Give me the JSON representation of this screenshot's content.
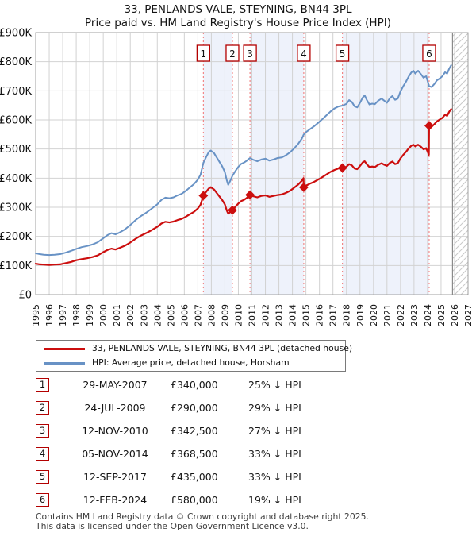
{
  "title": "33, PENLANDS VALE, STEYNING, BN44 3PL",
  "subtitle": "Price paid vs. HM Land Registry's House Price Index (HPI)",
  "legend": [
    {
      "label": "33, PENLANDS VALE, STEYNING, BN44 3PL (detached house)",
      "color": "#cc0e0e"
    },
    {
      "label": "HPI: Average price, detached house, Horsham",
      "color": "#6892c5"
    }
  ],
  "sales": [
    {
      "num": "1",
      "date": "29-MAY-2007",
      "price": "£340,000",
      "hpi_diff": "25% ↓ HPI",
      "year": 2007.41,
      "price_k": 340
    },
    {
      "num": "2",
      "date": "24-JUL-2009",
      "price": "£290,000",
      "hpi_diff": "29% ↓ HPI",
      "year": 2009.56,
      "price_k": 290
    },
    {
      "num": "3",
      "date": "12-NOV-2010",
      "price": "£342,500",
      "hpi_diff": "27% ↓ HPI",
      "year": 2010.86,
      "price_k": 342.5
    },
    {
      "num": "4",
      "date": "05-NOV-2014",
      "price": "£368,500",
      "hpi_diff": "33% ↓ HPI",
      "year": 2014.84,
      "price_k": 368.5
    },
    {
      "num": "5",
      "date": "12-SEP-2017",
      "price": "£435,000",
      "hpi_diff": "33% ↓ HPI",
      "year": 2017.7,
      "price_k": 435
    },
    {
      "num": "6",
      "date": "12-FEB-2024",
      "price": "£580,000",
      "hpi_diff": "19% ↓ HPI",
      "year": 2024.12,
      "price_k": 580
    }
  ],
  "footer": {
    "line1": "Contains HM Land Registry data © Crown copyright and database right 2025.",
    "line2": "This data is licensed under the Open Government Licence v3.0."
  },
  "chart_data": {
    "type": "line",
    "title": "Price paid vs. HPI",
    "x_min": 1995,
    "x_max": 2027,
    "y_max_k": 900,
    "y_tick_step_k": 100,
    "y_tick_labels": [
      "£0",
      "£100K",
      "£200K",
      "£300K",
      "£400K",
      "£500K",
      "£600K",
      "£700K",
      "£800K",
      "£900K"
    ],
    "data_end_year": 2025.85,
    "grid": true,
    "legend_position": "bottom",
    "bands_between_sales": [
      [
        2007.41,
        2009.56
      ],
      [
        2010.86,
        2014.84
      ],
      [
        2017.7,
        2024.12
      ]
    ],
    "colors": {
      "price_line": "#cc0e0e",
      "hpi_line": "#6892c5",
      "sale_dash": "#f27d7d",
      "band_fill": "#eef2fb",
      "grid_line": "#d2d2d2",
      "plot_border": "#a0a0a0",
      "hatch_line": "#c9c9c9",
      "data_end_line": "#8a8a8a",
      "badge_border": "#b30000"
    },
    "series": [
      {
        "name": "HPI: Average price, detached house, Horsham",
        "color": "#6892c5",
        "width": 2,
        "points": [
          [
            1995.0,
            142
          ],
          [
            1995.3,
            139
          ],
          [
            1995.6,
            137
          ],
          [
            1996.0,
            136
          ],
          [
            1996.4,
            137
          ],
          [
            1996.8,
            139
          ],
          [
            1997.2,
            144
          ],
          [
            1997.6,
            150
          ],
          [
            1998.0,
            157
          ],
          [
            1998.4,
            163
          ],
          [
            1998.8,
            167
          ],
          [
            1999.2,
            172
          ],
          [
            1999.6,
            180
          ],
          [
            2000.0,
            194
          ],
          [
            2000.3,
            204
          ],
          [
            2000.6,
            211
          ],
          [
            2000.9,
            207
          ],
          [
            2001.2,
            213
          ],
          [
            2001.6,
            224
          ],
          [
            2002.0,
            239
          ],
          [
            2002.4,
            256
          ],
          [
            2002.8,
            270
          ],
          [
            2003.2,
            282
          ],
          [
            2003.6,
            296
          ],
          [
            2004.0,
            310
          ],
          [
            2004.3,
            325
          ],
          [
            2004.6,
            333
          ],
          [
            2004.9,
            331
          ],
          [
            2005.2,
            334
          ],
          [
            2005.5,
            341
          ],
          [
            2005.8,
            346
          ],
          [
            2006.1,
            356
          ],
          [
            2006.4,
            368
          ],
          [
            2006.7,
            379
          ],
          [
            2007.0,
            395
          ],
          [
            2007.2,
            412
          ],
          [
            2007.41,
            453
          ],
          [
            2007.6,
            471
          ],
          [
            2007.8,
            489
          ],
          [
            2007.95,
            495
          ],
          [
            2008.2,
            486
          ],
          [
            2008.4,
            471
          ],
          [
            2008.6,
            456
          ],
          [
            2008.8,
            441
          ],
          [
            2009.0,
            421
          ],
          [
            2009.15,
            391
          ],
          [
            2009.25,
            377
          ],
          [
            2009.4,
            391
          ],
          [
            2009.56,
            408
          ],
          [
            2009.8,
            426
          ],
          [
            2010.0,
            439
          ],
          [
            2010.2,
            449
          ],
          [
            2010.4,
            453
          ],
          [
            2010.6,
            459
          ],
          [
            2010.86,
            469
          ],
          [
            2011.1,
            463
          ],
          [
            2011.4,
            458
          ],
          [
            2011.7,
            464
          ],
          [
            2012.0,
            467
          ],
          [
            2012.3,
            460
          ],
          [
            2012.6,
            464
          ],
          [
            2012.9,
            469
          ],
          [
            2013.2,
            471
          ],
          [
            2013.5,
            478
          ],
          [
            2013.8,
            488
          ],
          [
            2014.1,
            501
          ],
          [
            2014.4,
            516
          ],
          [
            2014.7,
            536
          ],
          [
            2014.84,
            550
          ],
          [
            2015.0,
            558
          ],
          [
            2015.3,
            568
          ],
          [
            2015.6,
            578
          ],
          [
            2015.9,
            590
          ],
          [
            2016.2,
            602
          ],
          [
            2016.5,
            615
          ],
          [
            2016.8,
            628
          ],
          [
            2017.1,
            639
          ],
          [
            2017.4,
            646
          ],
          [
            2017.7,
            649
          ],
          [
            2018.0,
            655
          ],
          [
            2018.2,
            668
          ],
          [
            2018.4,
            662
          ],
          [
            2018.6,
            647
          ],
          [
            2018.8,
            643
          ],
          [
            2019.0,
            659
          ],
          [
            2019.2,
            677
          ],
          [
            2019.35,
            684
          ],
          [
            2019.5,
            669
          ],
          [
            2019.7,
            653
          ],
          [
            2019.9,
            656
          ],
          [
            2020.1,
            654
          ],
          [
            2020.35,
            666
          ],
          [
            2020.6,
            673
          ],
          [
            2020.8,
            666
          ],
          [
            2021.0,
            659
          ],
          [
            2021.2,
            674
          ],
          [
            2021.4,
            682
          ],
          [
            2021.6,
            669
          ],
          [
            2021.8,
            673
          ],
          [
            2022.0,
            698
          ],
          [
            2022.2,
            716
          ],
          [
            2022.4,
            731
          ],
          [
            2022.6,
            749
          ],
          [
            2022.8,
            763
          ],
          [
            2022.95,
            769
          ],
          [
            2023.1,
            759
          ],
          [
            2023.3,
            769
          ],
          [
            2023.5,
            758
          ],
          [
            2023.7,
            745
          ],
          [
            2023.9,
            750
          ],
          [
            2024.12,
            716
          ],
          [
            2024.3,
            713
          ],
          [
            2024.5,
            723
          ],
          [
            2024.7,
            736
          ],
          [
            2024.9,
            742
          ],
          [
            2025.1,
            750
          ],
          [
            2025.3,
            764
          ],
          [
            2025.45,
            759
          ],
          [
            2025.6,
            776
          ],
          [
            2025.75,
            788
          ]
        ]
      },
      {
        "name": "33, PENLANDS VALE, STEYNING, BN44 3PL (detached house)",
        "color": "#cc0e0e",
        "width": 2.2,
        "points": [
          [
            1995.0,
            106
          ],
          [
            1995.3,
            104
          ],
          [
            1995.6,
            103
          ],
          [
            1996.0,
            102
          ],
          [
            1996.4,
            103
          ],
          [
            1996.8,
            104
          ],
          [
            1997.2,
            108
          ],
          [
            1997.6,
            112
          ],
          [
            1998.0,
            118
          ],
          [
            1998.4,
            122
          ],
          [
            1998.8,
            125
          ],
          [
            1999.2,
            129
          ],
          [
            1999.6,
            135
          ],
          [
            2000.0,
            146
          ],
          [
            2000.3,
            153
          ],
          [
            2000.6,
            158
          ],
          [
            2000.9,
            155
          ],
          [
            2001.2,
            160
          ],
          [
            2001.6,
            168
          ],
          [
            2002.0,
            179
          ],
          [
            2002.4,
            192
          ],
          [
            2002.8,
            203
          ],
          [
            2003.2,
            212
          ],
          [
            2003.6,
            222
          ],
          [
            2004.0,
            233
          ],
          [
            2004.3,
            244
          ],
          [
            2004.6,
            250
          ],
          [
            2004.9,
            248
          ],
          [
            2005.2,
            251
          ],
          [
            2005.5,
            256
          ],
          [
            2005.8,
            260
          ],
          [
            2006.1,
            267
          ],
          [
            2006.4,
            276
          ],
          [
            2006.7,
            284
          ],
          [
            2007.0,
            296
          ],
          [
            2007.2,
            309
          ],
          [
            2007.41,
            340
          ],
          [
            2007.6,
            352
          ],
          [
            2007.8,
            364
          ],
          [
            2007.95,
            369
          ],
          [
            2008.2,
            361
          ],
          [
            2008.4,
            349
          ],
          [
            2008.6,
            337
          ],
          [
            2008.8,
            325
          ],
          [
            2009.0,
            310
          ],
          [
            2009.15,
            288
          ],
          [
            2009.25,
            278
          ],
          [
            2009.4,
            284
          ],
          [
            2009.56,
            290
          ],
          [
            2009.8,
            303
          ],
          [
            2010.0,
            313
          ],
          [
            2010.2,
            321
          ],
          [
            2010.4,
            325
          ],
          [
            2010.6,
            331
          ],
          [
            2010.86,
            342.5
          ],
          [
            2011.1,
            338
          ],
          [
            2011.4,
            334
          ],
          [
            2011.7,
            339
          ],
          [
            2012.0,
            341
          ],
          [
            2012.3,
            336
          ],
          [
            2012.6,
            339
          ],
          [
            2012.9,
            342
          ],
          [
            2013.2,
            344
          ],
          [
            2013.5,
            349
          ],
          [
            2013.8,
            356
          ],
          [
            2014.1,
            366
          ],
          [
            2014.4,
            377
          ],
          [
            2014.7,
            391
          ],
          [
            2014.82,
            400
          ],
          [
            2014.84,
            368.5
          ],
          [
            2015.0,
            374
          ],
          [
            2015.3,
            381
          ],
          [
            2015.6,
            387
          ],
          [
            2015.9,
            395
          ],
          [
            2016.2,
            403
          ],
          [
            2016.5,
            412
          ],
          [
            2016.8,
            421
          ],
          [
            2017.1,
            428
          ],
          [
            2017.4,
            433
          ],
          [
            2017.7,
            435
          ],
          [
            2018.0,
            439
          ],
          [
            2018.2,
            448
          ],
          [
            2018.4,
            444
          ],
          [
            2018.6,
            433
          ],
          [
            2018.8,
            431
          ],
          [
            2019.0,
            442
          ],
          [
            2019.2,
            454
          ],
          [
            2019.35,
            458
          ],
          [
            2019.5,
            448
          ],
          [
            2019.7,
            438
          ],
          [
            2019.9,
            440
          ],
          [
            2020.1,
            438
          ],
          [
            2020.35,
            446
          ],
          [
            2020.6,
            451
          ],
          [
            2020.8,
            446
          ],
          [
            2021.0,
            442
          ],
          [
            2021.2,
            452
          ],
          [
            2021.4,
            457
          ],
          [
            2021.6,
            448
          ],
          [
            2021.8,
            451
          ],
          [
            2022.0,
            468
          ],
          [
            2022.2,
            480
          ],
          [
            2022.4,
            490
          ],
          [
            2022.6,
            502
          ],
          [
            2022.8,
            511
          ],
          [
            2022.95,
            515
          ],
          [
            2023.1,
            509
          ],
          [
            2023.3,
            515
          ],
          [
            2023.5,
            508
          ],
          [
            2023.7,
            499
          ],
          [
            2023.9,
            503
          ],
          [
            2024.1,
            480
          ],
          [
            2024.12,
            580
          ],
          [
            2024.3,
            578
          ],
          [
            2024.5,
            585
          ],
          [
            2024.7,
            595
          ],
          [
            2024.9,
            601
          ],
          [
            2025.1,
            607
          ],
          [
            2025.3,
            618
          ],
          [
            2025.45,
            614
          ],
          [
            2025.6,
            628
          ],
          [
            2025.75,
            637
          ]
        ]
      }
    ]
  }
}
